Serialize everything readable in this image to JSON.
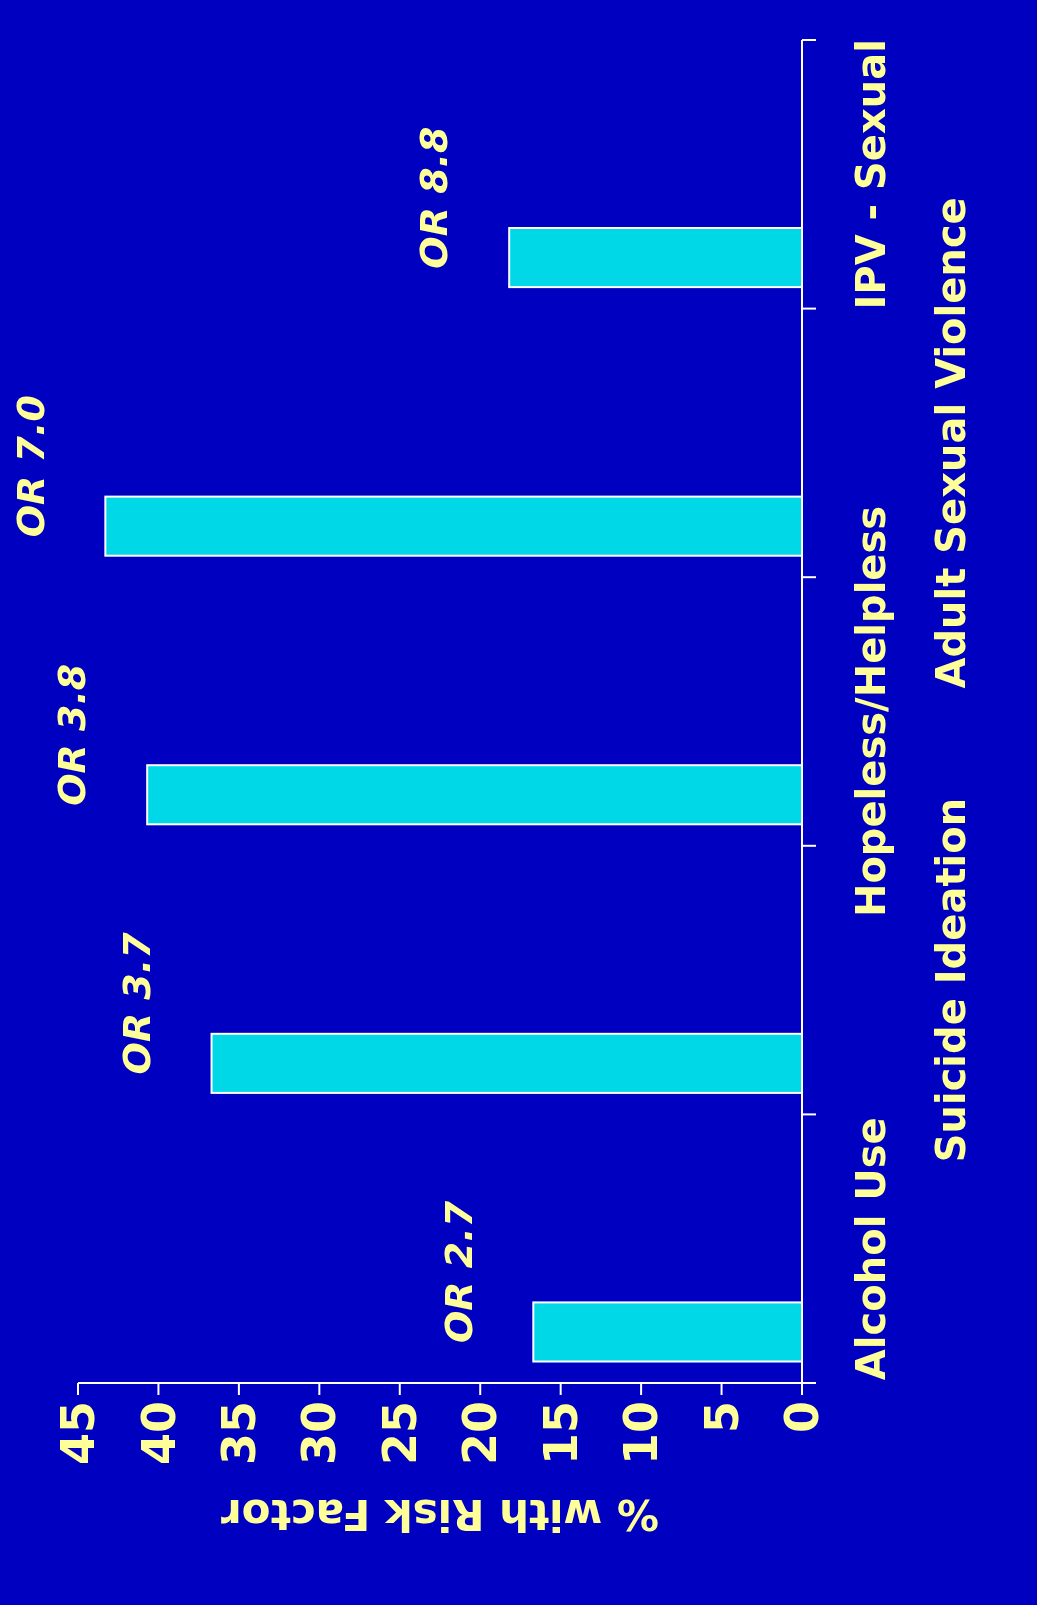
{
  "chart_data": {
    "type": "bar",
    "orientation": "horizontal",
    "xlabel": "% with Risk Factor",
    "categories": [
      "IPV - Sexual",
      "Adult Sexual Violence",
      "Hopeless/Helpless",
      "Suicide Ideation",
      "Alcohol Use"
    ],
    "values": [
      18.2,
      43.3,
      40.7,
      36.7,
      16.7
    ],
    "color": "#00d8e8",
    "xlim": [
      45,
      0
    ],
    "xticks": [
      45,
      40,
      35,
      30,
      25,
      20,
      15,
      10,
      5,
      0
    ],
    "grid": false,
    "annotations": [
      {
        "text": "OR 8.8",
        "x": 18.2,
        "y": "IPV - Sexual"
      },
      {
        "text": "OR 7.0",
        "x": 43.3,
        "y": "Adult Sexual Violence"
      },
      {
        "text": "OR 3.8",
        "x": 40.7,
        "y": "Hopeless/Helpless"
      },
      {
        "text": "OR 3.7",
        "x": 36.7,
        "y": "Suicide Ideation"
      },
      {
        "text": "OR 2.7",
        "x": 16.7,
        "y": "Alcohol Use"
      }
    ]
  }
}
